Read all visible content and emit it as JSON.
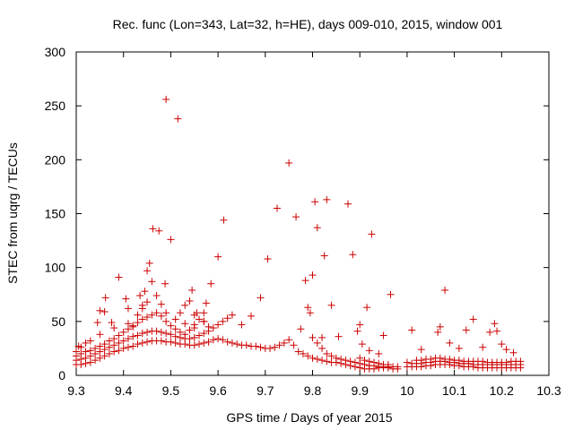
{
  "chart_data": {
    "type": "scatter",
    "title": "Rec. func (Lon=343, Lat=32, h=HE), days 009-010, 2015, window 001",
    "xlabel": "GPS time / Days of year 2015",
    "ylabel": "STEC from uqrg / TECUs",
    "xlim": [
      9.3,
      10.3
    ],
    "ylim": [
      0,
      300
    ],
    "xticks": [
      "9.3",
      "9.4",
      "9.5",
      "9.6",
      "9.7",
      "9.8",
      "9.9",
      "10",
      "10.1",
      "10.2",
      "10.3"
    ],
    "yticks": [
      "0",
      "50",
      "100",
      "150",
      "200",
      "250",
      "300"
    ],
    "grid": false,
    "marker": "+",
    "color": "#cc0000",
    "series": [
      {
        "name": "STEC",
        "points": [
          [
            9.3,
            10
          ],
          [
            9.31,
            10
          ],
          [
            9.32,
            11
          ],
          [
            9.33,
            12
          ],
          [
            9.34,
            14
          ],
          [
            9.35,
            16
          ],
          [
            9.36,
            18
          ],
          [
            9.37,
            20
          ],
          [
            9.38,
            22
          ],
          [
            9.39,
            23
          ],
          [
            9.4,
            25
          ],
          [
            9.41,
            26
          ],
          [
            9.42,
            27
          ],
          [
            9.43,
            29
          ],
          [
            9.44,
            30
          ],
          [
            9.45,
            31
          ],
          [
            9.46,
            32
          ],
          [
            9.47,
            32
          ],
          [
            9.48,
            32
          ],
          [
            9.49,
            31
          ],
          [
            9.5,
            31
          ],
          [
            9.51,
            30
          ],
          [
            9.52,
            29
          ],
          [
            9.53,
            29
          ],
          [
            9.54,
            28
          ],
          [
            9.55,
            28
          ],
          [
            9.56,
            29
          ],
          [
            9.57,
            30
          ],
          [
            9.58,
            31
          ],
          [
            9.59,
            33
          ],
          [
            9.6,
            34
          ],
          [
            9.61,
            33
          ],
          [
            9.62,
            31
          ],
          [
            9.63,
            30
          ],
          [
            9.64,
            29
          ],
          [
            9.65,
            28
          ],
          [
            9.66,
            28
          ],
          [
            9.67,
            27
          ],
          [
            9.68,
            27
          ],
          [
            9.69,
            26
          ],
          [
            9.7,
            25
          ],
          [
            9.71,
            25
          ],
          [
            9.72,
            26
          ],
          [
            9.73,
            28
          ],
          [
            9.74,
            30
          ],
          [
            9.75,
            33
          ],
          [
            9.76,
            28
          ],
          [
            9.77,
            22
          ],
          [
            9.78,
            20
          ],
          [
            9.79,
            18
          ],
          [
            9.8,
            16
          ],
          [
            9.81,
            15
          ],
          [
            9.82,
            14
          ],
          [
            9.83,
            13
          ],
          [
            9.84,
            12
          ],
          [
            9.85,
            12
          ],
          [
            9.86,
            11
          ],
          [
            9.87,
            10
          ],
          [
            9.88,
            9
          ],
          [
            9.89,
            8
          ],
          [
            9.9,
            7
          ],
          [
            9.91,
            6
          ],
          [
            9.92,
            6
          ],
          [
            9.93,
            6
          ],
          [
            9.94,
            7
          ],
          [
            9.95,
            7
          ],
          [
            9.96,
            7
          ],
          [
            9.97,
            6
          ],
          [
            9.98,
            6
          ],
          [
            10.0,
            8
          ],
          [
            10.01,
            8
          ],
          [
            10.02,
            8
          ],
          [
            10.03,
            8
          ],
          [
            10.04,
            9
          ],
          [
            10.05,
            9
          ],
          [
            10.06,
            10
          ],
          [
            10.07,
            10
          ],
          [
            10.08,
            10
          ],
          [
            10.09,
            10
          ],
          [
            10.1,
            9
          ],
          [
            10.11,
            9
          ],
          [
            10.12,
            8
          ],
          [
            10.13,
            8
          ],
          [
            10.14,
            8
          ],
          [
            10.15,
            7
          ],
          [
            10.16,
            7
          ],
          [
            10.17,
            7
          ],
          [
            10.18,
            7
          ],
          [
            10.19,
            7
          ],
          [
            10.2,
            7
          ],
          [
            10.21,
            7
          ],
          [
            10.22,
            7
          ],
          [
            10.23,
            7
          ],
          [
            10.24,
            7
          ],
          [
            9.3,
            14
          ],
          [
            9.31,
            15
          ],
          [
            9.32,
            16
          ],
          [
            9.33,
            18
          ],
          [
            9.34,
            20
          ],
          [
            9.35,
            22
          ],
          [
            9.36,
            24
          ],
          [
            9.37,
            26
          ],
          [
            9.38,
            28
          ],
          [
            9.39,
            30
          ],
          [
            9.4,
            32
          ],
          [
            9.41,
            34
          ],
          [
            9.42,
            36
          ],
          [
            9.43,
            37
          ],
          [
            9.44,
            39
          ],
          [
            9.45,
            40
          ],
          [
            9.46,
            41
          ],
          [
            9.47,
            41
          ],
          [
            9.48,
            40
          ],
          [
            9.49,
            39
          ],
          [
            9.5,
            38
          ],
          [
            9.51,
            36
          ],
          [
            9.52,
            35
          ],
          [
            9.53,
            34
          ],
          [
            9.54,
            34
          ],
          [
            9.55,
            35
          ],
          [
            9.56,
            37
          ],
          [
            9.57,
            39
          ],
          [
            9.58,
            41
          ],
          [
            9.59,
            44
          ],
          [
            9.6,
            47
          ],
          [
            9.61,
            50
          ],
          [
            9.62,
            53
          ],
          [
            9.63,
            56
          ],
          [
            9.8,
            35
          ],
          [
            9.81,
            30
          ],
          [
            9.82,
            25
          ],
          [
            9.83,
            20
          ],
          [
            9.84,
            18
          ],
          [
            9.85,
            16
          ],
          [
            9.86,
            15
          ],
          [
            9.87,
            14
          ],
          [
            9.88,
            13
          ],
          [
            9.89,
            12
          ],
          [
            9.9,
            11
          ],
          [
            9.91,
            10
          ],
          [
            9.92,
            9
          ],
          [
            9.93,
            9
          ],
          [
            9.94,
            8
          ],
          [
            9.95,
            8
          ],
          [
            9.96,
            8
          ],
          [
            9.97,
            8
          ],
          [
            9.98,
            8
          ],
          [
            10.0,
            12
          ],
          [
            10.01,
            11
          ],
          [
            10.02,
            11
          ],
          [
            10.03,
            11
          ],
          [
            10.04,
            12
          ],
          [
            10.05,
            12
          ],
          [
            10.06,
            13
          ],
          [
            10.07,
            13
          ],
          [
            10.08,
            13
          ],
          [
            10.09,
            12
          ],
          [
            10.1,
            12
          ],
          [
            10.11,
            11
          ],
          [
            10.12,
            11
          ],
          [
            10.13,
            11
          ],
          [
            10.14,
            10
          ],
          [
            10.15,
            10
          ],
          [
            10.16,
            10
          ],
          [
            10.17,
            10
          ],
          [
            10.18,
            10
          ],
          [
            10.19,
            10
          ],
          [
            10.2,
            10
          ],
          [
            10.21,
            10
          ],
          [
            10.22,
            10
          ],
          [
            10.23,
            10
          ],
          [
            10.24,
            10
          ],
          [
            9.3,
            18
          ],
          [
            9.31,
            20
          ],
          [
            9.32,
            22
          ],
          [
            9.33,
            23
          ],
          [
            9.34,
            25
          ],
          [
            9.35,
            27
          ],
          [
            9.36,
            29
          ],
          [
            9.37,
            32
          ],
          [
            9.38,
            34
          ],
          [
            9.39,
            37
          ],
          [
            9.4,
            40
          ],
          [
            9.41,
            43
          ],
          [
            9.42,
            46
          ],
          [
            9.43,
            49
          ],
          [
            9.44,
            52
          ],
          [
            9.45,
            54
          ],
          [
            9.46,
            56
          ],
          [
            9.47,
            58
          ],
          [
            9.48,
            55
          ],
          [
            9.49,
            50
          ],
          [
            9.5,
            46
          ],
          [
            9.51,
            43
          ],
          [
            9.52,
            40
          ],
          [
            9.53,
            38
          ],
          [
            9.54,
            42
          ],
          [
            9.55,
            47
          ],
          [
            9.56,
            52
          ],
          [
            9.57,
            50
          ],
          [
            9.58,
            45
          ],
          [
            9.9,
            16
          ],
          [
            9.91,
            14
          ],
          [
            9.92,
            13
          ],
          [
            9.93,
            12
          ],
          [
            9.94,
            11
          ],
          [
            9.95,
            10
          ],
          [
            9.96,
            10
          ],
          [
            10.02,
            14
          ],
          [
            10.03,
            14
          ],
          [
            10.04,
            15
          ],
          [
            10.05,
            15
          ],
          [
            10.06,
            16
          ],
          [
            10.07,
            16
          ],
          [
            10.08,
            15
          ],
          [
            10.09,
            15
          ],
          [
            10.1,
            14
          ],
          [
            10.11,
            14
          ],
          [
            10.12,
            13
          ],
          [
            10.13,
            13
          ],
          [
            10.14,
            13
          ],
          [
            10.15,
            13
          ],
          [
            10.16,
            13
          ],
          [
            10.17,
            12
          ],
          [
            10.18,
            12
          ],
          [
            10.19,
            12
          ],
          [
            10.2,
            12
          ],
          [
            10.21,
            12
          ],
          [
            10.22,
            13
          ],
          [
            10.23,
            13
          ],
          [
            10.24,
            13
          ],
          [
            9.3,
            22
          ],
          [
            9.31,
            26
          ],
          [
            9.32,
            30
          ],
          [
            9.35,
            38
          ],
          [
            9.38,
            44
          ],
          [
            9.41,
            48
          ],
          [
            9.43,
            56
          ],
          [
            9.44,
            62
          ],
          [
            9.45,
            68
          ],
          [
            9.47,
            74
          ],
          [
            9.49,
            58
          ],
          [
            9.51,
            52
          ],
          [
            9.53,
            48
          ],
          [
            9.55,
            56
          ],
          [
            9.57,
            50
          ],
          [
            9.305,
            27
          ],
          [
            9.33,
            32
          ],
          [
            9.345,
            49
          ],
          [
            9.35,
            60
          ],
          [
            9.36,
            59
          ],
          [
            9.362,
            72
          ],
          [
            9.375,
            49
          ],
          [
            9.39,
            91
          ],
          [
            9.405,
            71
          ],
          [
            9.41,
            62
          ],
          [
            9.42,
            45
          ],
          [
            9.435,
            74
          ],
          [
            9.44,
            65
          ],
          [
            9.445,
            78
          ],
          [
            9.45,
            97
          ],
          [
            9.455,
            104
          ],
          [
            9.46,
            87
          ],
          [
            9.462,
            136
          ],
          [
            9.475,
            134
          ],
          [
            9.48,
            66
          ],
          [
            9.488,
            85
          ],
          [
            9.49,
            256
          ],
          [
            9.5,
            126
          ],
          [
            9.515,
            238
          ],
          [
            9.52,
            58
          ],
          [
            9.53,
            65
          ],
          [
            9.54,
            69
          ],
          [
            9.545,
            79
          ],
          [
            9.55,
            44
          ],
          [
            9.555,
            58
          ],
          [
            9.57,
            58
          ],
          [
            9.575,
            67
          ],
          [
            9.585,
            85
          ],
          [
            9.6,
            110
          ],
          [
            9.612,
            144
          ],
          [
            9.65,
            47
          ],
          [
            9.67,
            55
          ],
          [
            9.69,
            72
          ],
          [
            9.705,
            108
          ],
          [
            9.725,
            155
          ],
          [
            9.75,
            197
          ],
          [
            9.765,
            147
          ],
          [
            9.775,
            43
          ],
          [
            9.785,
            88
          ],
          [
            9.79,
            63
          ],
          [
            9.795,
            58
          ],
          [
            9.8,
            93
          ],
          [
            9.805,
            161
          ],
          [
            9.81,
            137
          ],
          [
            9.82,
            35
          ],
          [
            9.825,
            111
          ],
          [
            9.83,
            163
          ],
          [
            9.84,
            65
          ],
          [
            9.855,
            36
          ],
          [
            9.875,
            159
          ],
          [
            9.885,
            112
          ],
          [
            9.895,
            41
          ],
          [
            9.9,
            47
          ],
          [
            9.905,
            29
          ],
          [
            9.915,
            63
          ],
          [
            9.92,
            23
          ],
          [
            9.925,
            131
          ],
          [
            9.94,
            20
          ],
          [
            9.95,
            37
          ],
          [
            9.965,
            75
          ],
          [
            10.01,
            42
          ],
          [
            10.03,
            24
          ],
          [
            10.065,
            40
          ],
          [
            10.07,
            45
          ],
          [
            10.08,
            79
          ],
          [
            10.09,
            30
          ],
          [
            10.11,
            25
          ],
          [
            10.125,
            42
          ],
          [
            10.14,
            52
          ],
          [
            10.16,
            26
          ],
          [
            10.175,
            40
          ],
          [
            10.185,
            48
          ],
          [
            10.19,
            41
          ],
          [
            10.2,
            29
          ],
          [
            10.21,
            24
          ],
          [
            10.225,
            21
          ]
        ]
      }
    ]
  }
}
